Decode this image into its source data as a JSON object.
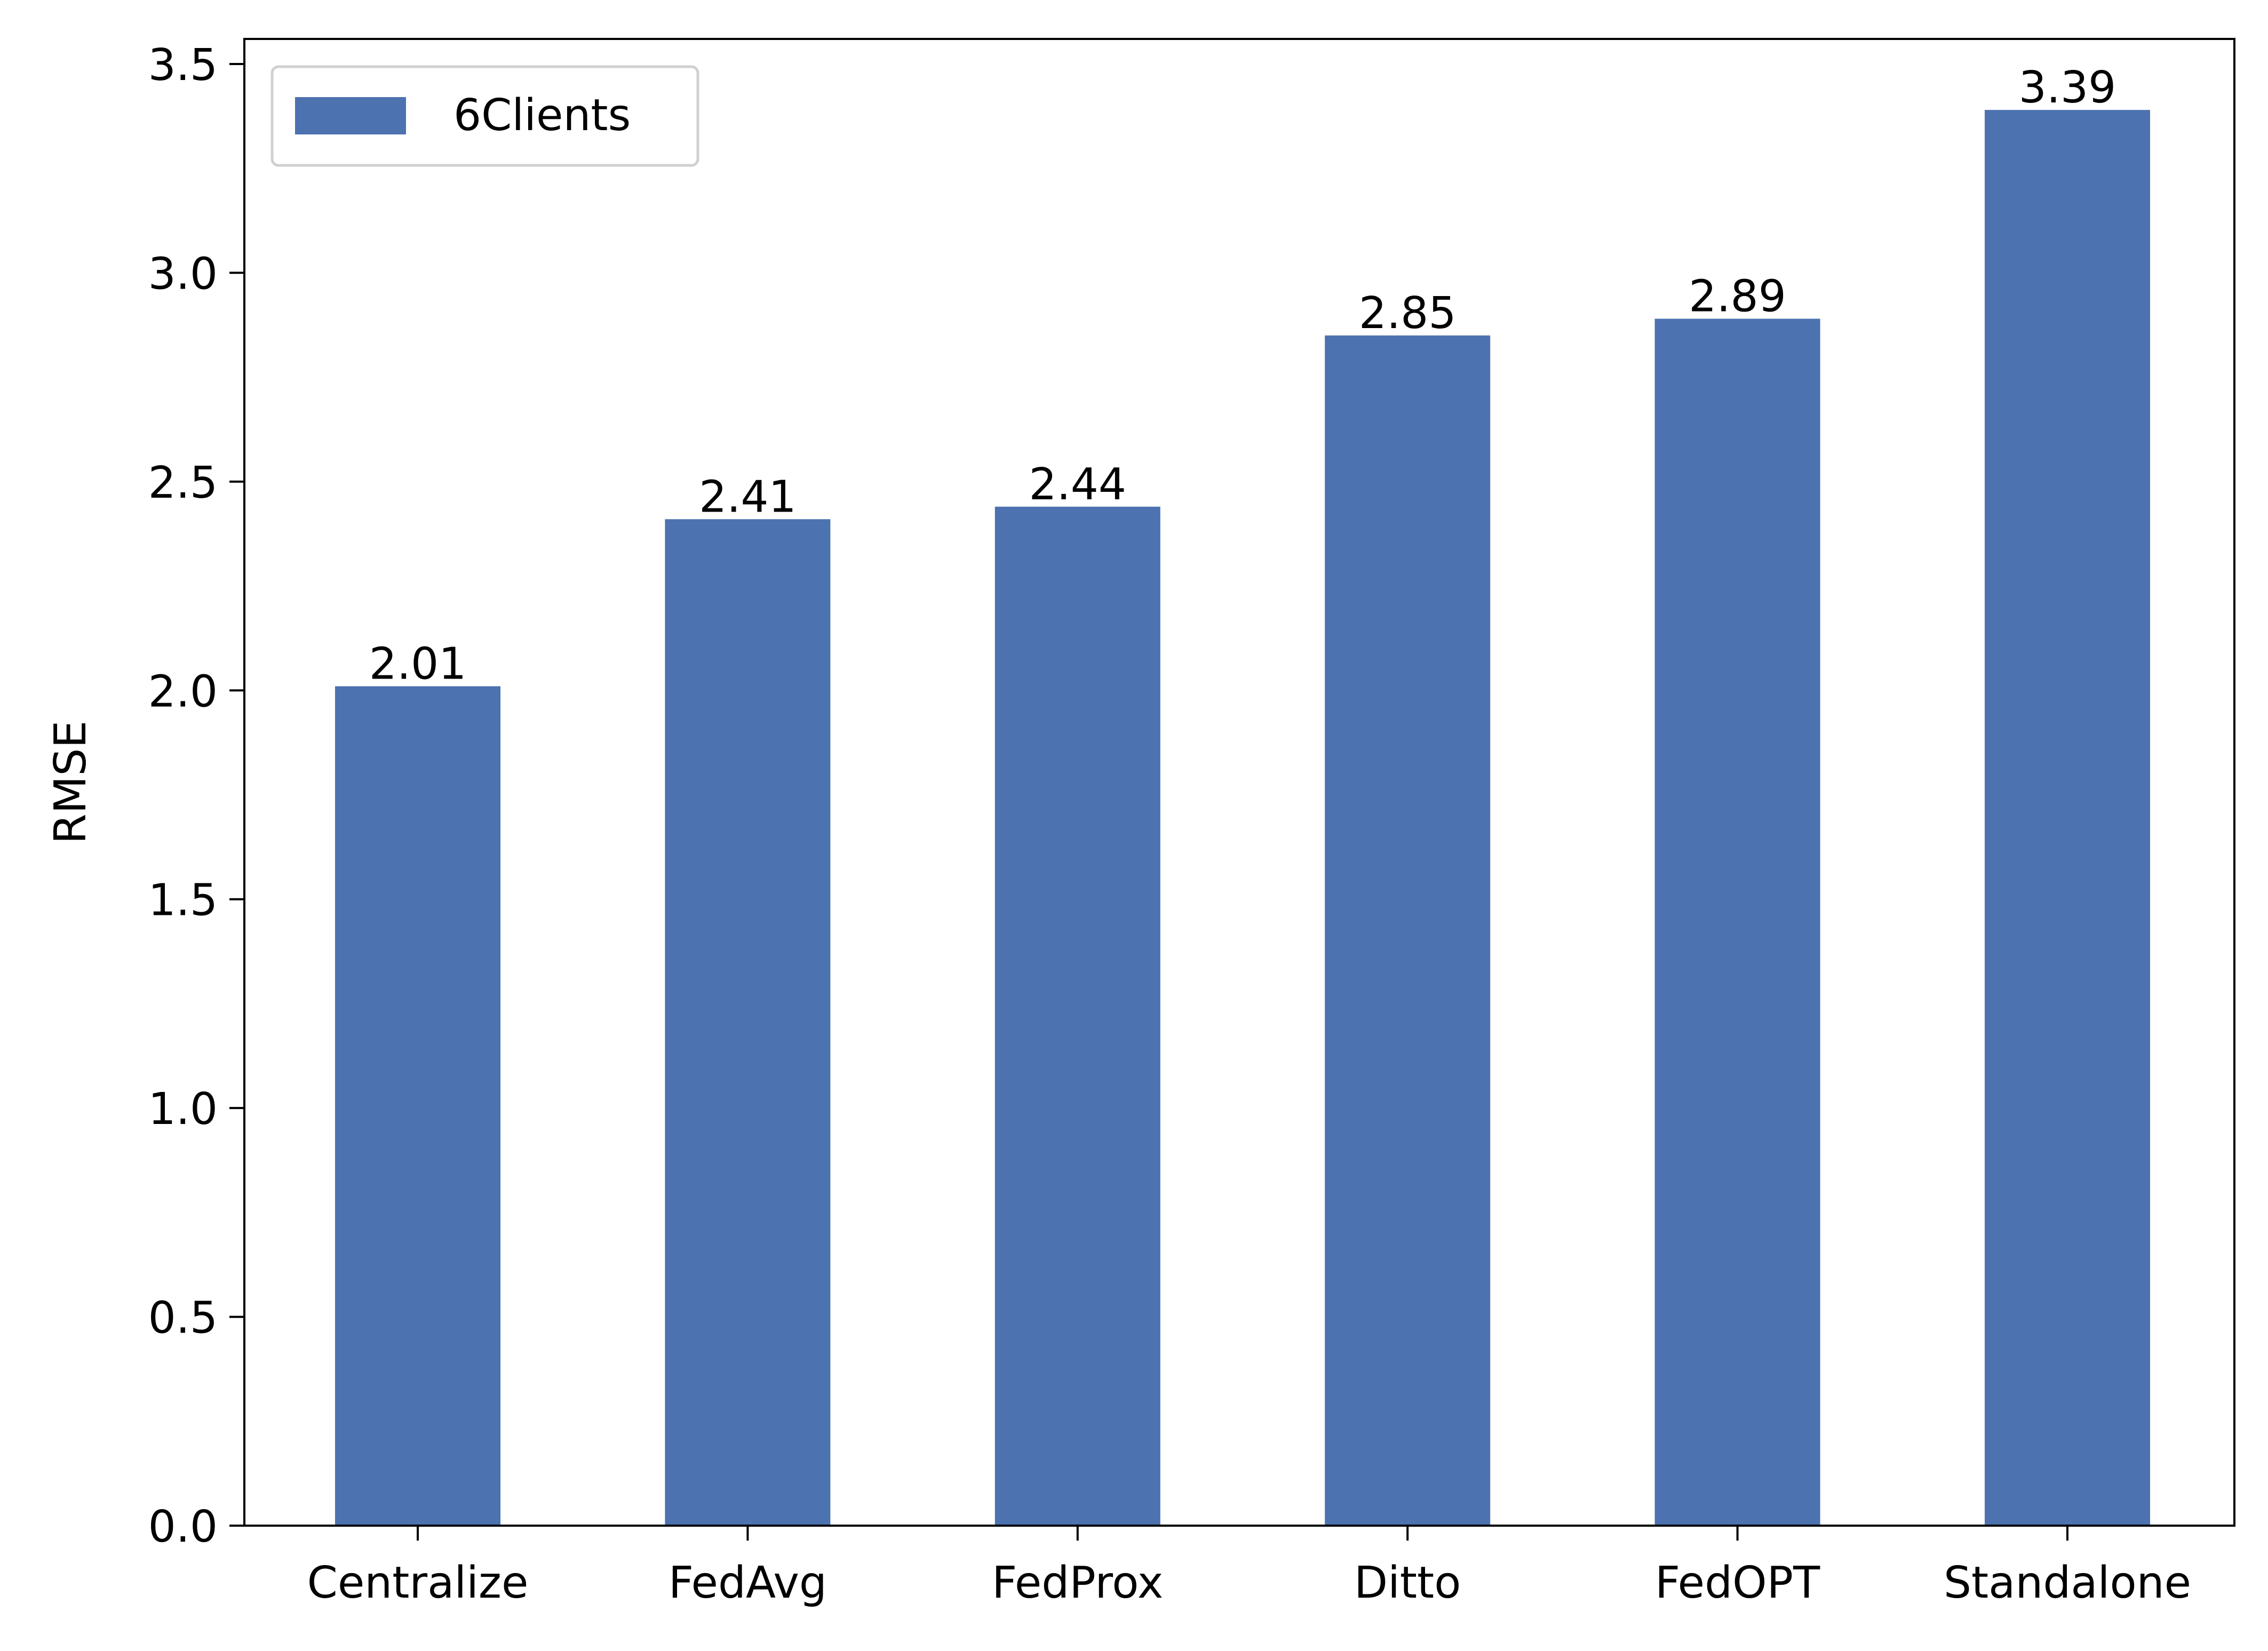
{
  "chart_data": {
    "type": "bar",
    "categories": [
      "Centralize",
      "FedAvg",
      "FedProx",
      "Ditto",
      "FedOPT",
      "Standalone"
    ],
    "series": [
      {
        "name": "6Clients",
        "values": [
          2.01,
          2.41,
          2.44,
          2.85,
          2.89,
          3.39
        ],
        "color": "#4c72b0"
      }
    ],
    "data_labels": [
      "2.01",
      "2.41",
      "2.44",
      "2.85",
      "2.89",
      "3.39"
    ],
    "xlabel": "",
    "ylabel": "RMSE",
    "ylim": [
      0,
      3.56
    ],
    "yticks": [
      0.0,
      0.5,
      1.0,
      1.5,
      2.0,
      2.5,
      3.0,
      3.5
    ],
    "ytick_labels": [
      "0.0",
      "0.5",
      "1.0",
      "1.5",
      "2.0",
      "2.5",
      "3.0",
      "3.5"
    ],
    "grid": false,
    "legend": {
      "position": "top-left",
      "entries": [
        "6Clients"
      ]
    }
  }
}
